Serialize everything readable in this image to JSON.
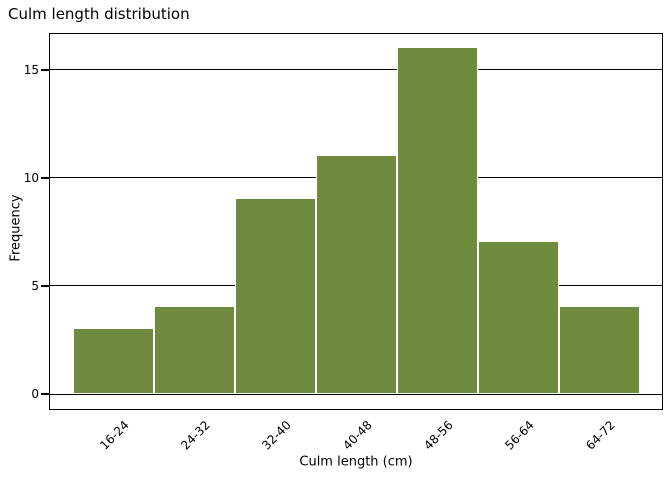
{
  "chart_data": {
    "type": "bar",
    "subtype": "histogram",
    "title": "Culm length distribution",
    "xlabel": "Culm length (cm)",
    "ylabel": "Frequency",
    "categories": [
      "16-24",
      "24-32",
      "32-40",
      "40-48",
      "48-56",
      "56-64",
      "64-72"
    ],
    "values": [
      3,
      4,
      9,
      11,
      16,
      7,
      4
    ],
    "yticks": [
      0,
      5,
      10,
      15
    ],
    "ylim": [
      0,
      16.7
    ],
    "grid": "horizontal black lines at y ticks, behind bars",
    "legend_position": "none",
    "colors": {
      "bar_fill": "#6e8b3e",
      "bar_border": "#ffffff",
      "axis_line": "#000000",
      "text": "#000000",
      "background": "#ffffff"
    }
  }
}
